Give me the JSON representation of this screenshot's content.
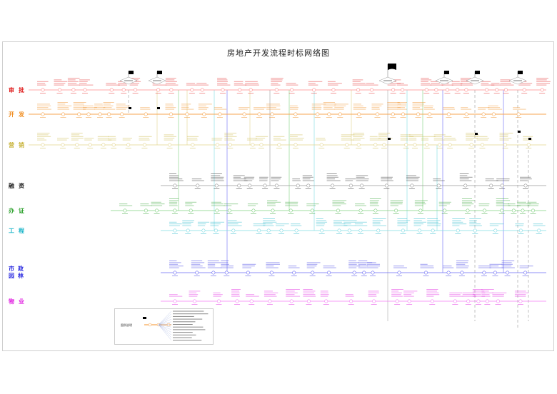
{
  "title": "房地产开发流程时标网络图",
  "lanes": [
    {
      "key": "approval",
      "label": "审批",
      "label_color": "#e02020",
      "line_color": "#ff8a8a"
    },
    {
      "key": "development",
      "label": "开发",
      "label_color": "#f08c1e",
      "line_color": "#f7a650"
    },
    {
      "key": "marketing",
      "label": "营销",
      "label_color": "#c8b43c",
      "line_color": "#e3d58e"
    },
    {
      "key": "financing",
      "label": "融资",
      "label_color": "#222222",
      "line_color": "#999999"
    },
    {
      "key": "certificate",
      "label": "办证",
      "label_color": "#2aa02a",
      "line_color": "#7fd07f"
    },
    {
      "key": "engineering",
      "label": "工程",
      "label_color": "#19b4c8",
      "line_color": "#7fdbe3"
    },
    {
      "key": "municipal",
      "label": "市政园林",
      "label_color": "#2a2ae0",
      "line_color": "#6a6af5"
    },
    {
      "key": "property",
      "label": "物业",
      "label_color": "#e020e0",
      "line_color": "#f47ef4"
    }
  ],
  "legend": {
    "title": "图例说明"
  },
  "milestone_icon": "flag-icon"
}
